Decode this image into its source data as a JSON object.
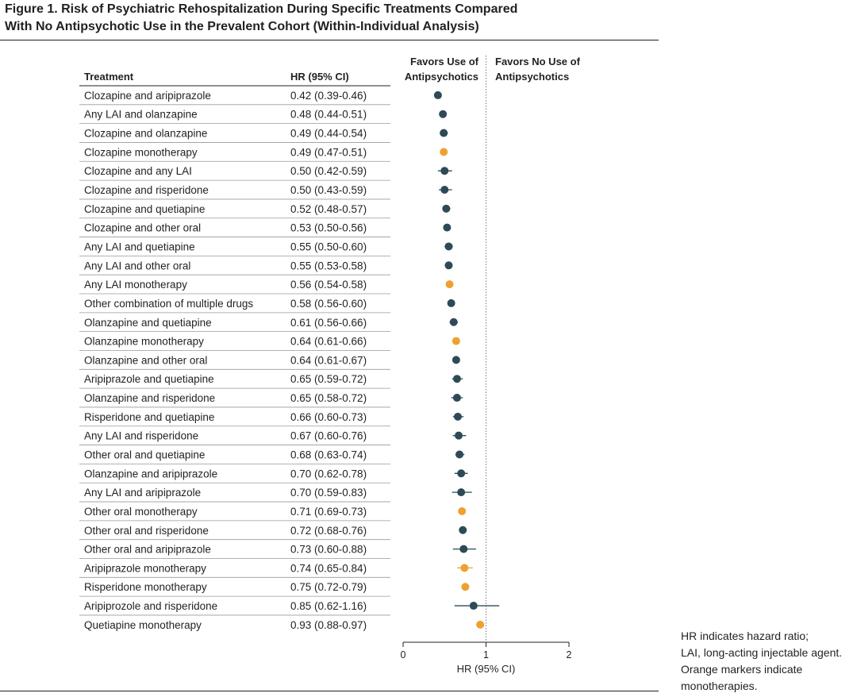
{
  "figure": {
    "title_line1": "Figure 1. Risk of Psychiatric Rehospitalization During Specific Treatments Compared",
    "title_line2": "With No Antipsychotic Use in the Prevalent Cohort (Within-Individual Analysis)"
  },
  "footnote": {
    "line1": "HR indicates hazard ratio;",
    "line2": "LAI, long-acting injectable agent.",
    "line3": "Orange markers indicate",
    "line4": "monotherapies."
  },
  "colors": {
    "combination": "#2e4a57",
    "monotherapy": "#f0a030",
    "text": "#231f20",
    "rule": "#9a9a9a"
  },
  "chart_data": {
    "type": "forest",
    "column_headers": {
      "treatment": "Treatment",
      "hr": "HR (95% CI)"
    },
    "favors_left": [
      "Favors Use of",
      "Antipsychotics"
    ],
    "favors_right": [
      "Favors No Use of",
      "Antipsychotics"
    ],
    "xlabel": "HR (95% CI)",
    "xlim": [
      0,
      2
    ],
    "xticks": [
      0,
      1,
      2
    ],
    "reference_line": 1,
    "rows": [
      {
        "label": "Clozapine and aripiprazole",
        "hr_text": "0.42 (0.39-0.46)",
        "hr": 0.42,
        "lo": 0.39,
        "hi": 0.46,
        "mono": false
      },
      {
        "label": "Any LAI and olanzapine",
        "hr_text": "0.48 (0.44-0.51)",
        "hr": 0.48,
        "lo": 0.44,
        "hi": 0.51,
        "mono": false
      },
      {
        "label": "Clozapine and olanzapine",
        "hr_text": "0.49 (0.44-0.54)",
        "hr": 0.49,
        "lo": 0.44,
        "hi": 0.54,
        "mono": false
      },
      {
        "label": "Clozapine monotherapy",
        "hr_text": "0.49 (0.47-0.51)",
        "hr": 0.49,
        "lo": 0.47,
        "hi": 0.51,
        "mono": true
      },
      {
        "label": "Clozapine and any LAI",
        "hr_text": "0.50 (0.42-0.59)",
        "hr": 0.5,
        "lo": 0.42,
        "hi": 0.59,
        "mono": false
      },
      {
        "label": "Clozapine and risperidone",
        "hr_text": "0.50 (0.43-0.59)",
        "hr": 0.5,
        "lo": 0.43,
        "hi": 0.59,
        "mono": false
      },
      {
        "label": "Clozapine and quetiapine",
        "hr_text": "0.52 (0.48-0.57)",
        "hr": 0.52,
        "lo": 0.48,
        "hi": 0.57,
        "mono": false
      },
      {
        "label": "Clozapine and other oral",
        "hr_text": "0.53 (0.50-0.56)",
        "hr": 0.53,
        "lo": 0.5,
        "hi": 0.56,
        "mono": false
      },
      {
        "label": "Any LAI and quetiapine",
        "hr_text": "0.55 (0.50-0.60)",
        "hr": 0.55,
        "lo": 0.5,
        "hi": 0.6,
        "mono": false
      },
      {
        "label": "Any LAI and other oral",
        "hr_text": "0.55 (0.53-0.58)",
        "hr": 0.55,
        "lo": 0.53,
        "hi": 0.58,
        "mono": false
      },
      {
        "label": "Any LAI monotherapy",
        "hr_text": "0.56 (0.54-0.58)",
        "hr": 0.56,
        "lo": 0.54,
        "hi": 0.58,
        "mono": true
      },
      {
        "label": "Other combination of multiple drugs",
        "hr_text": "0.58 (0.56-0.60)",
        "hr": 0.58,
        "lo": 0.56,
        "hi": 0.6,
        "mono": false
      },
      {
        "label": "Olanzapine and quetiapine",
        "hr_text": "0.61 (0.56-0.66)",
        "hr": 0.61,
        "lo": 0.56,
        "hi": 0.66,
        "mono": false
      },
      {
        "label": "Olanzapine monotherapy",
        "hr_text": "0.64 (0.61-0.66)",
        "hr": 0.64,
        "lo": 0.61,
        "hi": 0.66,
        "mono": true
      },
      {
        "label": "Olanzapine and other oral",
        "hr_text": "0.64 (0.61-0.67)",
        "hr": 0.64,
        "lo": 0.61,
        "hi": 0.67,
        "mono": false
      },
      {
        "label": "Aripiprazole and quetiapine",
        "hr_text": "0.65 (0.59-0.72)",
        "hr": 0.65,
        "lo": 0.59,
        "hi": 0.72,
        "mono": false
      },
      {
        "label": "Olanzapine and risperidone",
        "hr_text": "0.65 (0.58-0.72)",
        "hr": 0.65,
        "lo": 0.58,
        "hi": 0.72,
        "mono": false
      },
      {
        "label": "Risperidone and quetiapine",
        "hr_text": "0.66 (0.60-0.73)",
        "hr": 0.66,
        "lo": 0.6,
        "hi": 0.73,
        "mono": false
      },
      {
        "label": "Any LAI and risperidone",
        "hr_text": "0.67 (0.60-0.76)",
        "hr": 0.67,
        "lo": 0.6,
        "hi": 0.76,
        "mono": false
      },
      {
        "label": "Other oral and quetiapine",
        "hr_text": "0.68 (0.63-0.74)",
        "hr": 0.68,
        "lo": 0.63,
        "hi": 0.74,
        "mono": false
      },
      {
        "label": "Olanzapine and aripiprazole",
        "hr_text": "0.70 (0.62-0.78)",
        "hr": 0.7,
        "lo": 0.62,
        "hi": 0.78,
        "mono": false
      },
      {
        "label": "Any LAI and aripiprazole",
        "hr_text": "0.70 (0.59-0.83)",
        "hr": 0.7,
        "lo": 0.59,
        "hi": 0.83,
        "mono": false
      },
      {
        "label": "Other oral monotherapy",
        "hr_text": "0.71 (0.69-0.73)",
        "hr": 0.71,
        "lo": 0.69,
        "hi": 0.73,
        "mono": true
      },
      {
        "label": "Other oral and risperidone",
        "hr_text": "0.72 (0.68-0.76)",
        "hr": 0.72,
        "lo": 0.68,
        "hi": 0.76,
        "mono": false
      },
      {
        "label": "Other oral and aripiprazole",
        "hr_text": "0.73 (0.60-0.88)",
        "hr": 0.73,
        "lo": 0.6,
        "hi": 0.88,
        "mono": false
      },
      {
        "label": "Aripiprazole monotherapy",
        "hr_text": "0.74 (0.65-0.84)",
        "hr": 0.74,
        "lo": 0.65,
        "hi": 0.84,
        "mono": true
      },
      {
        "label": "Risperidone monotherapy",
        "hr_text": "0.75 (0.72-0.79)",
        "hr": 0.75,
        "lo": 0.72,
        "hi": 0.79,
        "mono": true
      },
      {
        "label": "Aripiprozole and risperidone",
        "hr_text": "0.85 (0.62-1.16)",
        "hr": 0.85,
        "lo": 0.62,
        "hi": 1.16,
        "mono": false
      },
      {
        "label": "Quetiapine monotherapy",
        "hr_text": "0.93 (0.88-0.97)",
        "hr": 0.93,
        "lo": 0.88,
        "hi": 0.97,
        "mono": true
      }
    ]
  }
}
